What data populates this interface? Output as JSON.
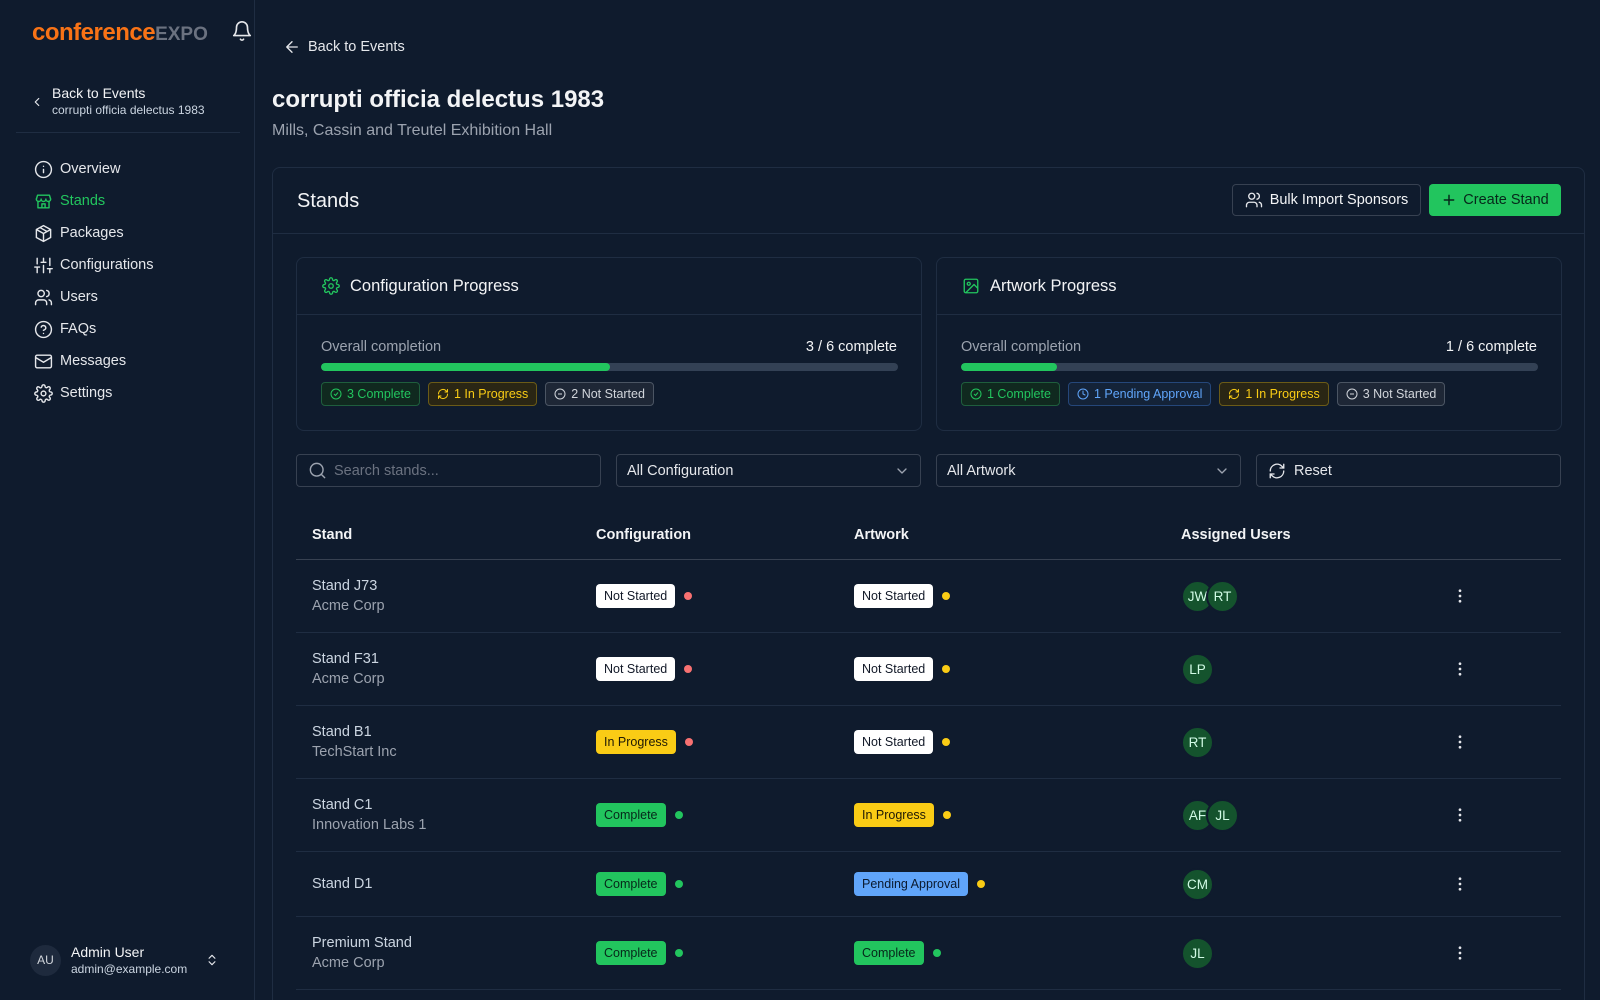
{
  "brand": {
    "name_main": "conference",
    "name_accent": "EXPO"
  },
  "sidebar": {
    "back_label": "Back to Events",
    "event_name": "corrupti officia delectus 1983",
    "items": [
      {
        "label": "Overview",
        "icon": "info-icon"
      },
      {
        "label": "Stands",
        "icon": "store-icon"
      },
      {
        "label": "Packages",
        "icon": "package-icon"
      },
      {
        "label": "Configurations",
        "icon": "sliders-icon"
      },
      {
        "label": "Users",
        "icon": "users-icon"
      },
      {
        "label": "FAQs",
        "icon": "help-icon"
      },
      {
        "label": "Messages",
        "icon": "mail-icon"
      },
      {
        "label": "Settings",
        "icon": "gear-icon"
      }
    ],
    "active_item": "Stands",
    "user": {
      "initials": "AU",
      "name": "Admin User",
      "email": "admin@example.com"
    }
  },
  "header": {
    "back_label": "Back to Events",
    "title": "corrupti officia delectus 1983",
    "venue": "Mills, Cassin and Treutel Exhibition Hall"
  },
  "stands_panel": {
    "title": "Stands",
    "bulk_import_label": "Bulk Import Sponsors",
    "create_label": "Create Stand"
  },
  "config_progress": {
    "title": "Configuration Progress",
    "overall_label": "Overall completion",
    "complete_text": "3 / 6 complete",
    "fraction": 0.5,
    "chips": {
      "complete": "3 Complete",
      "in_progress": "1 In Progress",
      "not_started": "2 Not Started"
    }
  },
  "artwork_progress": {
    "title": "Artwork Progress",
    "overall_label": "Overall completion",
    "complete_text": "1 / 6 complete",
    "fraction": 0.1667,
    "chips": {
      "complete": "1 Complete",
      "pending": "1 Pending Approval",
      "in_progress": "1 In Progress",
      "not_started": "3 Not Started"
    }
  },
  "filters": {
    "search_placeholder": "Search stands...",
    "config_value": "All Configuration",
    "artwork_value": "All Artwork",
    "reset_label": "Reset"
  },
  "table": {
    "headers": {
      "stand": "Stand",
      "configuration": "Configuration",
      "artwork": "Artwork",
      "assigned_users": "Assigned Users"
    },
    "rows": [
      {
        "name": "Stand J73",
        "company": "Acme Corp",
        "config": "Not Started",
        "artwork": "Not Started",
        "users": [
          "JW",
          "RT"
        ]
      },
      {
        "name": "Stand F31",
        "company": "Acme Corp",
        "config": "Not Started",
        "artwork": "Not Started",
        "users": [
          "LP"
        ]
      },
      {
        "name": "Stand B1",
        "company": "TechStart Inc",
        "config": "In Progress",
        "artwork": "Not Started",
        "users": [
          "RT"
        ]
      },
      {
        "name": "Stand C1",
        "company": "Innovation Labs 1",
        "config": "Complete",
        "artwork": "In Progress",
        "users": [
          "AF",
          "JL"
        ]
      },
      {
        "name": "Stand D1",
        "company": "",
        "config": "Complete",
        "artwork": "Pending Approval",
        "users": [
          "CM"
        ]
      },
      {
        "name": "Premium Stand",
        "company": "Acme Corp",
        "config": "Complete",
        "artwork": "Complete",
        "users": [
          "JL"
        ]
      }
    ]
  },
  "colors": {
    "accent": "#22c55e",
    "brand_orange": "#f97316",
    "in_progress": "#facc15",
    "pending": "#60a5fa",
    "not_started_dot": "#f87171",
    "background": "#0f1b2d"
  }
}
